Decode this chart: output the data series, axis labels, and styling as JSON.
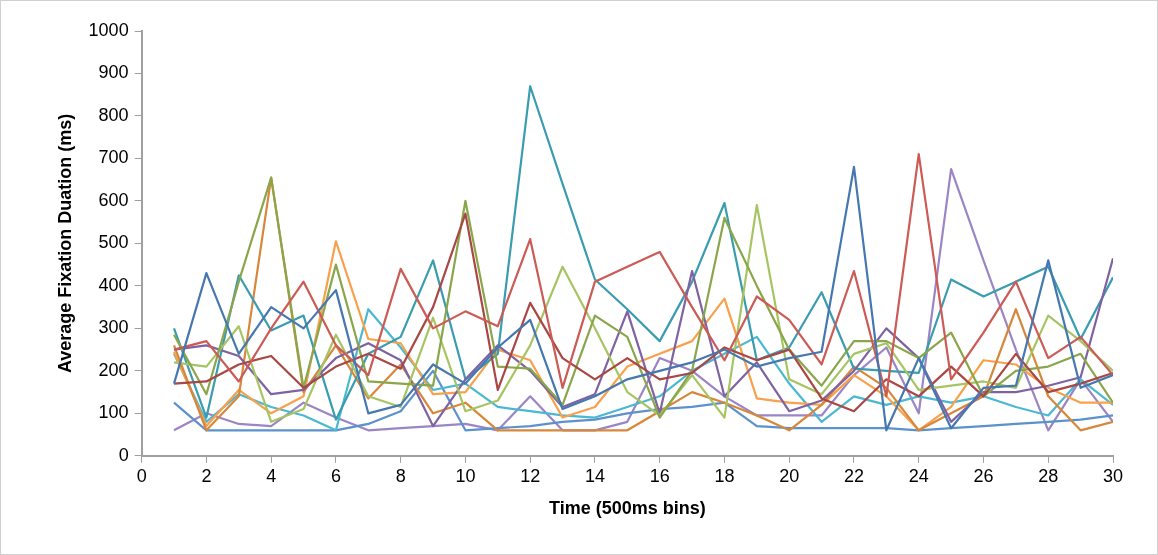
{
  "chart_data": {
    "type": "line",
    "xlabel": "Time (500ms bins)",
    "ylabel": "Average Fixation Duation (ms)",
    "x": [
      1,
      2,
      3,
      4,
      5,
      6,
      7,
      8,
      9,
      10,
      11,
      12,
      13,
      14,
      15,
      16,
      17,
      18,
      19,
      20,
      21,
      22,
      23,
      24,
      25,
      26,
      27,
      28,
      29,
      30
    ],
    "xlim": [
      0,
      30
    ],
    "xticks": [
      0,
      2,
      4,
      6,
      8,
      10,
      12,
      14,
      16,
      18,
      20,
      22,
      24,
      26,
      28,
      30
    ],
    "ylim": [
      0,
      1000
    ],
    "yticks": [
      0,
      100,
      200,
      300,
      400,
      500,
      600,
      700,
      800,
      900,
      1000
    ],
    "grid": false,
    "legend": false,
    "marker": "none",
    "line_style": "solid",
    "series": [
      {
        "color": "#4678b0",
        "values": [
          170,
          430,
          240,
          350,
          300,
          390,
          100,
          120,
          215,
          170,
          255,
          320,
          110,
          140,
          180,
          200,
          220,
          250,
          210,
          230,
          245,
          680,
          60,
          230,
          65,
          160,
          165,
          460,
          160,
          190
        ]
      },
      {
        "color": "#cc5a55",
        "values": [
          250,
          270,
          175,
          300,
          410,
          260,
          190,
          440,
          300,
          340,
          305,
          510,
          160,
          410,
          445,
          480,
          350,
          225,
          375,
          320,
          215,
          435,
          140,
          710,
          180,
          290,
          410,
          230,
          280,
          190
        ]
      },
      {
        "color": "#a84744",
        "values": [
          170,
          175,
          215,
          235,
          160,
          210,
          240,
          205,
          350,
          570,
          155,
          360,
          230,
          180,
          230,
          180,
          195,
          255,
          225,
          250,
          135,
          105,
          180,
          140,
          210,
          140,
          240,
          150,
          170,
          195
        ]
      },
      {
        "color": "#8aa64b",
        "values": [
          285,
          145,
          410,
          655,
          160,
          450,
          175,
          170,
          165,
          600,
          210,
          205,
          120,
          330,
          280,
          90,
          200,
          560,
          400,
          250,
          165,
          270,
          270,
          230,
          290,
          140,
          200,
          210,
          240,
          125
        ]
      },
      {
        "color": "#a6c562",
        "values": [
          220,
          210,
          305,
          80,
          110,
          285,
          140,
          115,
          325,
          105,
          130,
          260,
          445,
          300,
          150,
          95,
          190,
          90,
          590,
          180,
          145,
          240,
          265,
          155,
          165,
          175,
          160,
          330,
          270,
          200
        ]
      },
      {
        "color": "#7f62a1",
        "values": [
          250,
          260,
          235,
          145,
          155,
          230,
          265,
          225,
          70,
          180,
          260,
          200,
          115,
          145,
          340,
          100,
          435,
          140,
          220,
          105,
          130,
          200,
          300,
          230,
          80,
          150,
          150,
          165,
          185,
          465
        ]
      },
      {
        "color": "#3a9cb0",
        "values": [
          300,
          90,
          425,
          295,
          330,
          85,
          240,
          280,
          460,
          180,
          240,
          870,
          640,
          415,
          345,
          270,
          410,
          595,
          225,
          255,
          385,
          205,
          200,
          195,
          415,
          375,
          410,
          445,
          275,
          420
        ]
      },
      {
        "color": "#d8873a",
        "values": [
          260,
          60,
          140,
          655,
          150,
          260,
          135,
          215,
          100,
          125,
          60,
          60,
          60,
          60,
          60,
          105,
          150,
          125,
          95,
          60,
          120,
          210,
          160,
          60,
          100,
          140,
          345,
          140,
          60,
          80
        ]
      },
      {
        "color": "#f9a04a",
        "values": [
          245,
          70,
          155,
          100,
          140,
          505,
          275,
          265,
          145,
          150,
          250,
          225,
          90,
          115,
          210,
          240,
          270,
          370,
          135,
          125,
          120,
          190,
          140,
          60,
          115,
          225,
          215,
          160,
          125,
          125
        ]
      },
      {
        "color": "#4bb8d2",
        "values": [
          240,
          80,
          145,
          115,
          95,
          60,
          345,
          255,
          155,
          170,
          115,
          105,
          95,
          90,
          115,
          140,
          200,
          240,
          280,
          170,
          80,
          140,
          120,
          140,
          125,
          140,
          115,
          95,
          180,
          120
        ]
      },
      {
        "color": "#5b91cc",
        "values": [
          125,
          60,
          60,
          60,
          60,
          60,
          75,
          105,
          200,
          60,
          65,
          70,
          80,
          85,
          100,
          110,
          115,
          125,
          70,
          65,
          65,
          65,
          65,
          60,
          65,
          70,
          75,
          80,
          85,
          95
        ]
      },
      {
        "color": "#9b85c4",
        "values": [
          60,
          100,
          75,
          70,
          125,
          90,
          60,
          65,
          70,
          75,
          60,
          140,
          60,
          60,
          80,
          230,
          200,
          140,
          95,
          95,
          95,
          190,
          255,
          100,
          675,
          460,
          250,
          60,
          180,
          80
        ]
      }
    ]
  }
}
